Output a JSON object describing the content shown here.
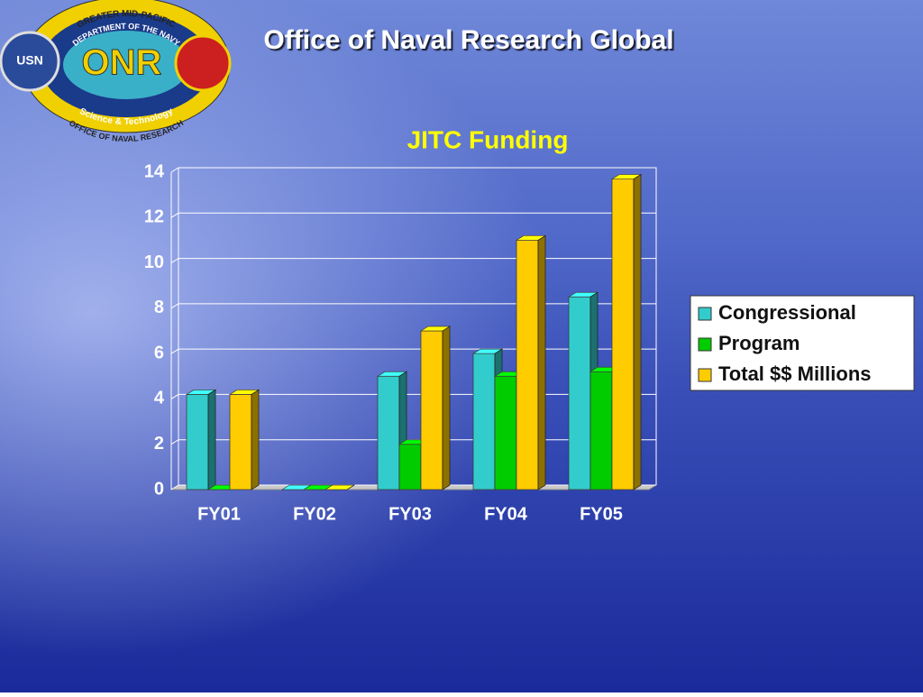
{
  "header": {
    "title": "Office of Naval Research Global"
  },
  "logo": {
    "outer_top": "GREATER MID-PACIFIC",
    "inner_top": "DEPARTMENT OF THE NAVY",
    "inner_bottom": "Science & Technology",
    "outer_bottom": "OFFICE OF NAVAL RESEARCH",
    "left": "USN",
    "center": "ONR"
  },
  "chart_data": {
    "type": "bar3d",
    "title": "JITC Funding",
    "categories": [
      "FY01",
      "FY02",
      "FY03",
      "FY04",
      "FY05"
    ],
    "series": [
      {
        "name": "Congressional",
        "color": "#33cccc",
        "values": [
          4.2,
          0,
          5,
          6,
          8.5
        ]
      },
      {
        "name": "Program",
        "color": "#00cc00",
        "values": [
          0,
          0,
          2,
          5,
          5.2
        ]
      },
      {
        "name": "Total $$ Millions",
        "color": "#ffcc00",
        "values": [
          4.2,
          0,
          7,
          11,
          13.7
        ]
      }
    ],
    "ylim": [
      0,
      14
    ],
    "yticks": [
      0,
      2,
      4,
      6,
      8,
      10,
      12,
      14
    ],
    "grid": true,
    "legend": "right"
  }
}
